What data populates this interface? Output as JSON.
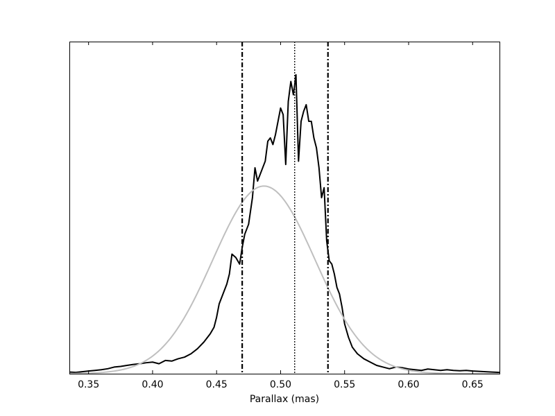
{
  "chart_data": {
    "type": "line",
    "title": "",
    "xlabel": "Parallax (mas)",
    "ylabel": "",
    "xlim": [
      0.335,
      0.671
    ],
    "ylim": [
      0,
      1.0
    ],
    "x_ticks": [
      0.35,
      0.4,
      0.45,
      0.5,
      0.55,
      0.6,
      0.65
    ],
    "x_tick_labels": [
      "0.35",
      "0.40",
      "0.45",
      "0.50",
      "0.55",
      "0.60",
      "0.65"
    ],
    "y_ticks_shown": false,
    "grid": false,
    "colors": {
      "histogram": "#000000",
      "gaussian_fit": "#bfbfbf",
      "markers": "#000000",
      "frame": "#000000"
    },
    "series": [
      {
        "style": "histogram-step",
        "color": "#000000",
        "x": [
          0.335,
          0.34,
          0.345,
          0.35,
          0.355,
          0.36,
          0.365,
          0.37,
          0.375,
          0.38,
          0.385,
          0.39,
          0.395,
          0.4,
          0.405,
          0.41,
          0.415,
          0.42,
          0.425,
          0.43,
          0.435,
          0.44,
          0.445,
          0.448,
          0.45,
          0.452,
          0.455,
          0.458,
          0.46,
          0.462,
          0.465,
          0.468,
          0.47,
          0.472,
          0.475,
          0.478,
          0.48,
          0.482,
          0.485,
          0.488,
          0.49,
          0.492,
          0.494,
          0.496,
          0.498,
          0.5,
          0.502,
          0.504,
          0.506,
          0.508,
          0.51,
          0.512,
          0.514,
          0.516,
          0.518,
          0.52,
          0.522,
          0.524,
          0.526,
          0.528,
          0.53,
          0.532,
          0.534,
          0.536,
          0.538,
          0.54,
          0.542,
          0.544,
          0.546,
          0.548,
          0.55,
          0.553,
          0.556,
          0.56,
          0.565,
          0.57,
          0.575,
          0.58,
          0.585,
          0.59,
          0.595,
          0.6,
          0.605,
          0.61,
          0.615,
          0.62,
          0.625,
          0.63,
          0.635,
          0.64,
          0.645,
          0.65,
          0.655,
          0.66,
          0.665,
          0.671
        ],
        "y": [
          0.005,
          0.004,
          0.006,
          0.008,
          0.01,
          0.012,
          0.015,
          0.02,
          0.022,
          0.025,
          0.028,
          0.03,
          0.033,
          0.035,
          0.03,
          0.04,
          0.038,
          0.045,
          0.05,
          0.06,
          0.075,
          0.095,
          0.12,
          0.14,
          0.17,
          0.21,
          0.24,
          0.27,
          0.3,
          0.36,
          0.35,
          0.33,
          0.38,
          0.42,
          0.45,
          0.53,
          0.62,
          0.58,
          0.61,
          0.64,
          0.7,
          0.71,
          0.69,
          0.72,
          0.76,
          0.8,
          0.78,
          0.63,
          0.82,
          0.88,
          0.84,
          0.9,
          0.64,
          0.76,
          0.79,
          0.81,
          0.76,
          0.76,
          0.71,
          0.68,
          0.62,
          0.53,
          0.56,
          0.4,
          0.34,
          0.33,
          0.3,
          0.26,
          0.24,
          0.2,
          0.15,
          0.11,
          0.08,
          0.06,
          0.045,
          0.035,
          0.025,
          0.02,
          0.015,
          0.02,
          0.018,
          0.014,
          0.012,
          0.01,
          0.014,
          0.012,
          0.01,
          0.012,
          0.01,
          0.009,
          0.01,
          0.008,
          0.007,
          0.006,
          0.005,
          0.004
        ]
      },
      {
        "style": "smooth",
        "color": "#bfbfbf",
        "gaussian": {
          "mean": 0.487,
          "sigma": 0.04,
          "peak": 0.565
        }
      }
    ],
    "vertical_lines": [
      {
        "x": 0.47,
        "style": "dash-dot"
      },
      {
        "x": 0.511,
        "style": "dotted"
      },
      {
        "x": 0.537,
        "style": "dash-dot"
      }
    ]
  }
}
